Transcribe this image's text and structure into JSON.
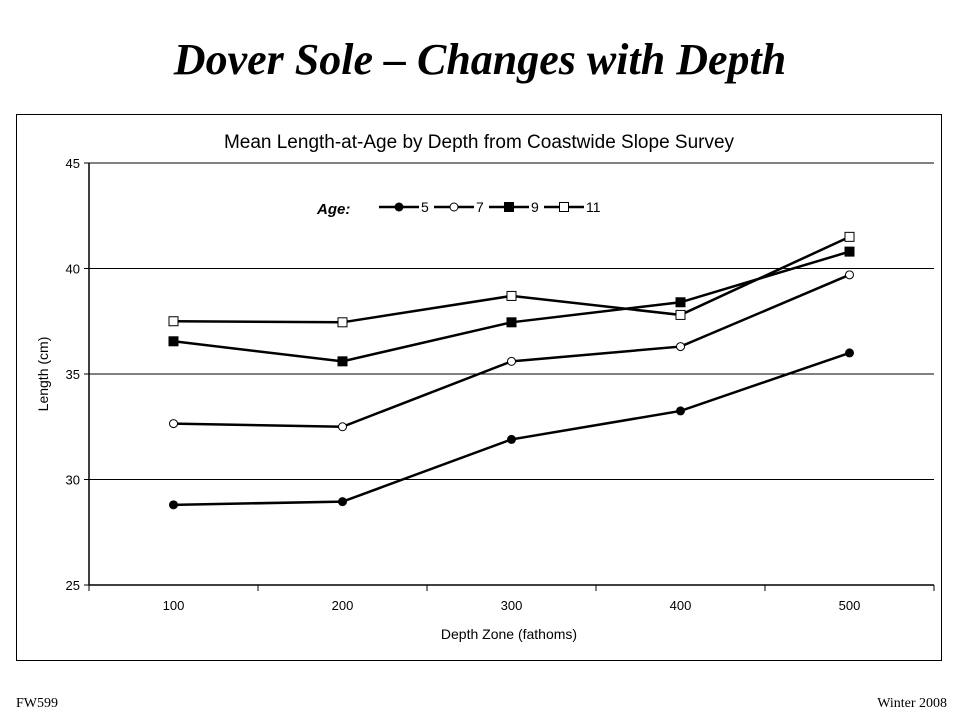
{
  "slide": {
    "title": "Dover Sole – Changes with Depth",
    "footer_left": "FW599",
    "footer_right": "Winter 2008"
  },
  "chart_data": {
    "type": "line",
    "title": "Mean Length-at-Age by Depth from Coastwide Slope Survey",
    "xlabel": "Depth Zone (fathoms)",
    "ylabel": "Length (cm)",
    "categories": [
      "100",
      "200",
      "300",
      "400",
      "500"
    ],
    "ylim": [
      25,
      45
    ],
    "yticks": [
      25,
      30,
      35,
      40,
      45
    ],
    "grid": "horizontal major",
    "legend_title": "Age:",
    "legend_position": "top-left inside plot",
    "series": [
      {
        "name": "5",
        "marker": "filled-circle",
        "values": [
          28.8,
          28.95,
          31.9,
          33.25,
          36.0
        ]
      },
      {
        "name": "7",
        "marker": "open-circle",
        "values": [
          32.65,
          32.5,
          35.6,
          36.3,
          39.7
        ]
      },
      {
        "name": "9",
        "marker": "filled-square",
        "values": [
          36.55,
          35.6,
          37.45,
          38.4,
          40.8
        ]
      },
      {
        "name": "11",
        "marker": "open-square",
        "values": [
          37.5,
          37.45,
          38.7,
          37.8,
          41.5
        ]
      }
    ],
    "colors": {
      "line": "#000000",
      "grid": "#000000",
      "background": "#ffffff"
    }
  }
}
